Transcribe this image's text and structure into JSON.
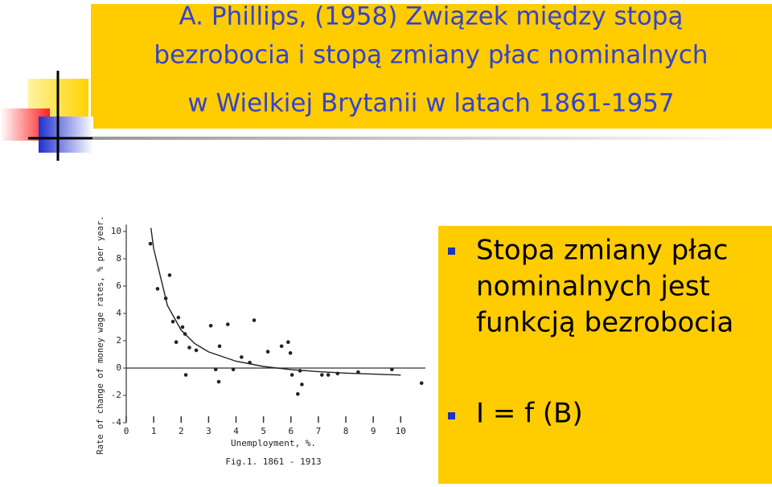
{
  "slide": {
    "title": [
      "A. Phillips, (1958) Związek między stopą",
      "bezrobocia i stopą zmiany płac nominalnych",
      "w Wielkiej Brytanii w latach 1861-1957"
    ],
    "bullets": [
      [
        "Stopa zmiany płac",
        "nominalnych jest",
        "funkcją bezrobocia"
      ],
      [
        "I = f (B)"
      ]
    ]
  },
  "chart_data": {
    "type": "scatter",
    "y_label": "Rate of change of money wage rates, % per year.",
    "x_label": "Unemployment, %.",
    "caption": "Fig.1. 1861 - 1913",
    "xlim": [
      0,
      10.9
    ],
    "ylim": [
      -4.5,
      10.5
    ],
    "xticks": [
      0,
      1,
      2,
      3,
      4,
      5,
      6,
      7,
      8,
      9,
      10
    ],
    "yticks": [
      -4,
      -2,
      0,
      2,
      4,
      6,
      8,
      10
    ],
    "zero_line": true,
    "color": "#222222",
    "series": [
      {
        "marker": "dot",
        "x": [
          0.88,
          1.14,
          1.58,
          1.44,
          1.7,
          1.9,
          2.05,
          1.82,
          2.14,
          2.3,
          2.55,
          3.08,
          3.7,
          4.66,
          3.4,
          2.17,
          3.26,
          3.37,
          3.9,
          4.2,
          5.16,
          5.66,
          5.9,
          5.98,
          6.04,
          6.33,
          6.25,
          6.4,
          7.13,
          7.36,
          7.7,
          8.45,
          9.68,
          10.76,
          4.5
        ],
        "values": [
          9.1,
          5.8,
          6.8,
          5.1,
          3.4,
          3.7,
          3.0,
          1.9,
          2.5,
          1.5,
          1.3,
          3.1,
          3.2,
          3.5,
          1.6,
          -0.5,
          -0.1,
          -1.0,
          -0.1,
          0.8,
          1.2,
          1.6,
          1.9,
          1.1,
          -0.5,
          -0.2,
          -1.9,
          -1.2,
          -0.5,
          -0.5,
          -0.4,
          -0.3,
          -0.1,
          -1.1,
          0.4
        ]
      },
      {
        "marker": "line",
        "x": [
          0.9,
          1,
          1.5,
          2,
          2.5,
          3,
          4,
          5,
          6,
          7,
          8,
          10
        ],
        "values": [
          10.26,
          8.74,
          4.58,
          2.77,
          1.79,
          1.18,
          0.5,
          0.12,
          -0.11,
          -0.26,
          -0.37,
          -0.51
        ]
      }
    ]
  }
}
